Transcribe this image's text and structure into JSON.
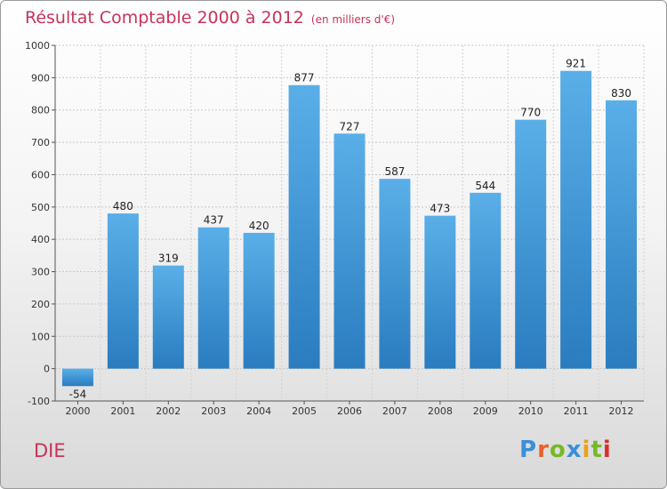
{
  "title": "Résultat Comptable 2000 à 2012",
  "unit": "(en milliers d'€)",
  "place": "DIE",
  "logo": {
    "text": "Proxiti",
    "colors": [
      "#3b8fd8",
      "#e8622c",
      "#76b829",
      "#3b8fd8",
      "#e8a020",
      "#76b829",
      "#d8302c"
    ]
  },
  "colors": {
    "title": "#c8325a",
    "bar_top": "#5aafe8",
    "bar_bottom": "#2a7cbf"
  },
  "chart_data": {
    "type": "bar",
    "title": "Résultat Comptable 2000 à 2012",
    "subtitle": "(en milliers d'€)",
    "categories": [
      "2000",
      "2001",
      "2002",
      "2003",
      "2004",
      "2005",
      "2006",
      "2007",
      "2008",
      "2009",
      "2010",
      "2011",
      "2012"
    ],
    "values": [
      -54,
      480,
      319,
      437,
      420,
      877,
      727,
      587,
      473,
      544,
      770,
      921,
      830
    ],
    "yticks": [
      -100,
      0,
      100,
      200,
      300,
      400,
      500,
      600,
      700,
      800,
      900,
      1000
    ],
    "ylim": [
      -100,
      1000
    ],
    "xlabel": "",
    "ylabel": ""
  }
}
